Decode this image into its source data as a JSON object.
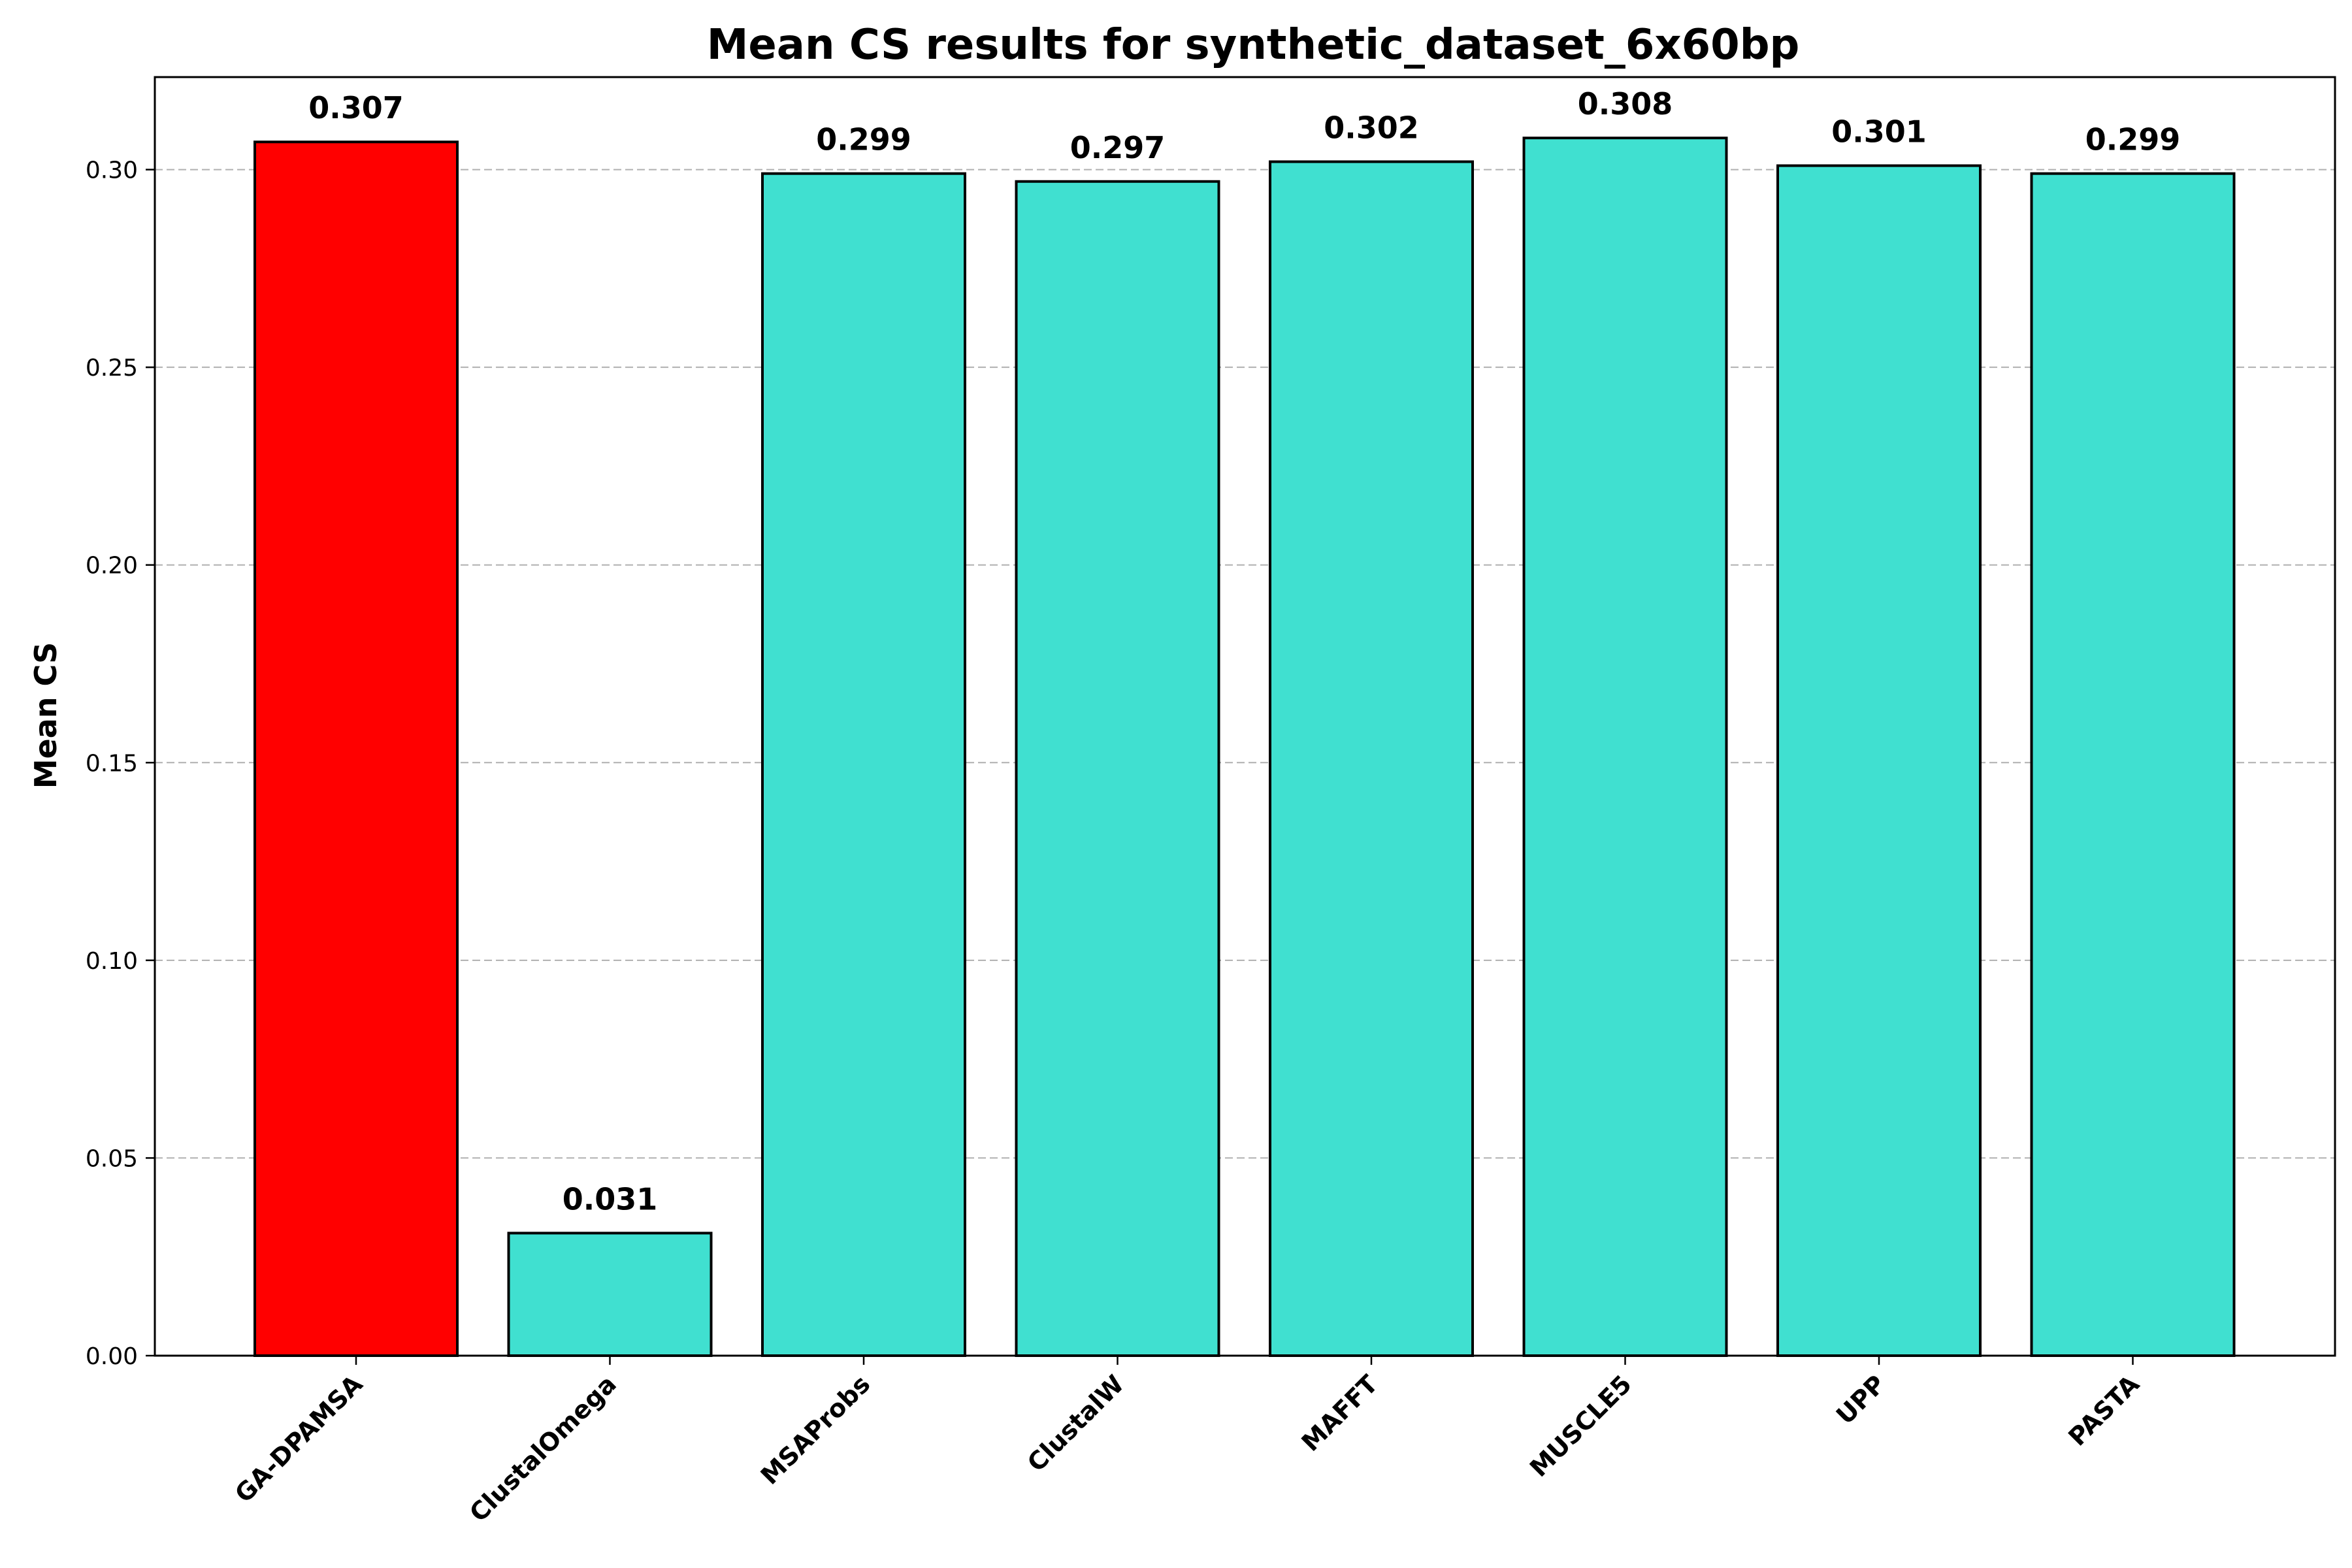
{
  "chart_data": {
    "type": "bar",
    "title": "Mean CS results for synthetic_dataset_6x60bp",
    "xlabel": "",
    "ylabel": "Mean CS",
    "categories": [
      "GA-DPAMSA",
      "ClustalOmega",
      "MSAProbs",
      "ClustalW",
      "MAFFT",
      "MUSCLE5",
      "UPP",
      "PASTA"
    ],
    "values": [
      0.307,
      0.031,
      0.299,
      0.297,
      0.302,
      0.308,
      0.301,
      0.299
    ],
    "value_labels": [
      "0.307",
      "0.031",
      "0.299",
      "0.297",
      "0.302",
      "0.308",
      "0.301",
      "0.299"
    ],
    "colors": [
      "#ff0000",
      "#40e0d0",
      "#40e0d0",
      "#40e0d0",
      "#40e0d0",
      "#40e0d0",
      "#40e0d0",
      "#40e0d0"
    ],
    "ylim": [
      0,
      0.3234
    ],
    "yticks": [
      0.0,
      0.05,
      0.1,
      0.15,
      0.2,
      0.25,
      0.3
    ],
    "ytick_labels": [
      "0.00",
      "0.05",
      "0.10",
      "0.15",
      "0.20",
      "0.25",
      "0.30"
    ],
    "grid": "y-dashed",
    "legend": "none"
  }
}
